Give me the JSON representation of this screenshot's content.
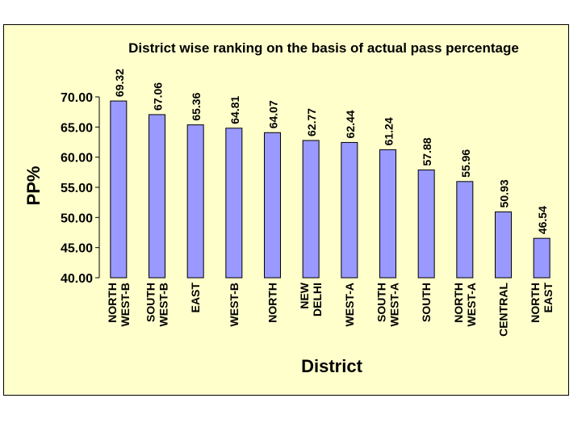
{
  "chart_data": {
    "type": "bar",
    "title": "District wise ranking on the basis of actual pass percentage",
    "xlabel": "District",
    "ylabel": "PP%",
    "ylim": [
      40,
      70
    ],
    "yticks": [
      "40.00",
      "45.00",
      "50.00",
      "55.00",
      "60.00",
      "65.00",
      "70.00"
    ],
    "grid": false,
    "legend": "none",
    "bar_color": "#9999ff",
    "background": "#ffffcc",
    "categories": [
      [
        "NORTH",
        "WEST-B"
      ],
      [
        "SOUTH",
        "WEST-B"
      ],
      [
        "EAST"
      ],
      [
        "WEST-B"
      ],
      [
        "NORTH"
      ],
      [
        "NEW",
        "DELHI"
      ],
      [
        "WEST-A"
      ],
      [
        "SOUTH",
        "WEST-A"
      ],
      [
        "SOUTH"
      ],
      [
        "NORTH",
        "WEST-A"
      ],
      [
        "CENTRAL"
      ],
      [
        "NORTH",
        "EAST"
      ]
    ],
    "values": [
      69.32,
      67.06,
      65.36,
      64.81,
      64.07,
      62.77,
      62.44,
      61.24,
      57.88,
      55.96,
      50.93,
      46.54
    ],
    "value_labels": [
      "69.32",
      "67.06",
      "65.36",
      "64.81",
      "64.07",
      "62.77",
      "62.44",
      "61.24",
      "57.88",
      "55.96",
      "50.93",
      "46.54"
    ]
  }
}
